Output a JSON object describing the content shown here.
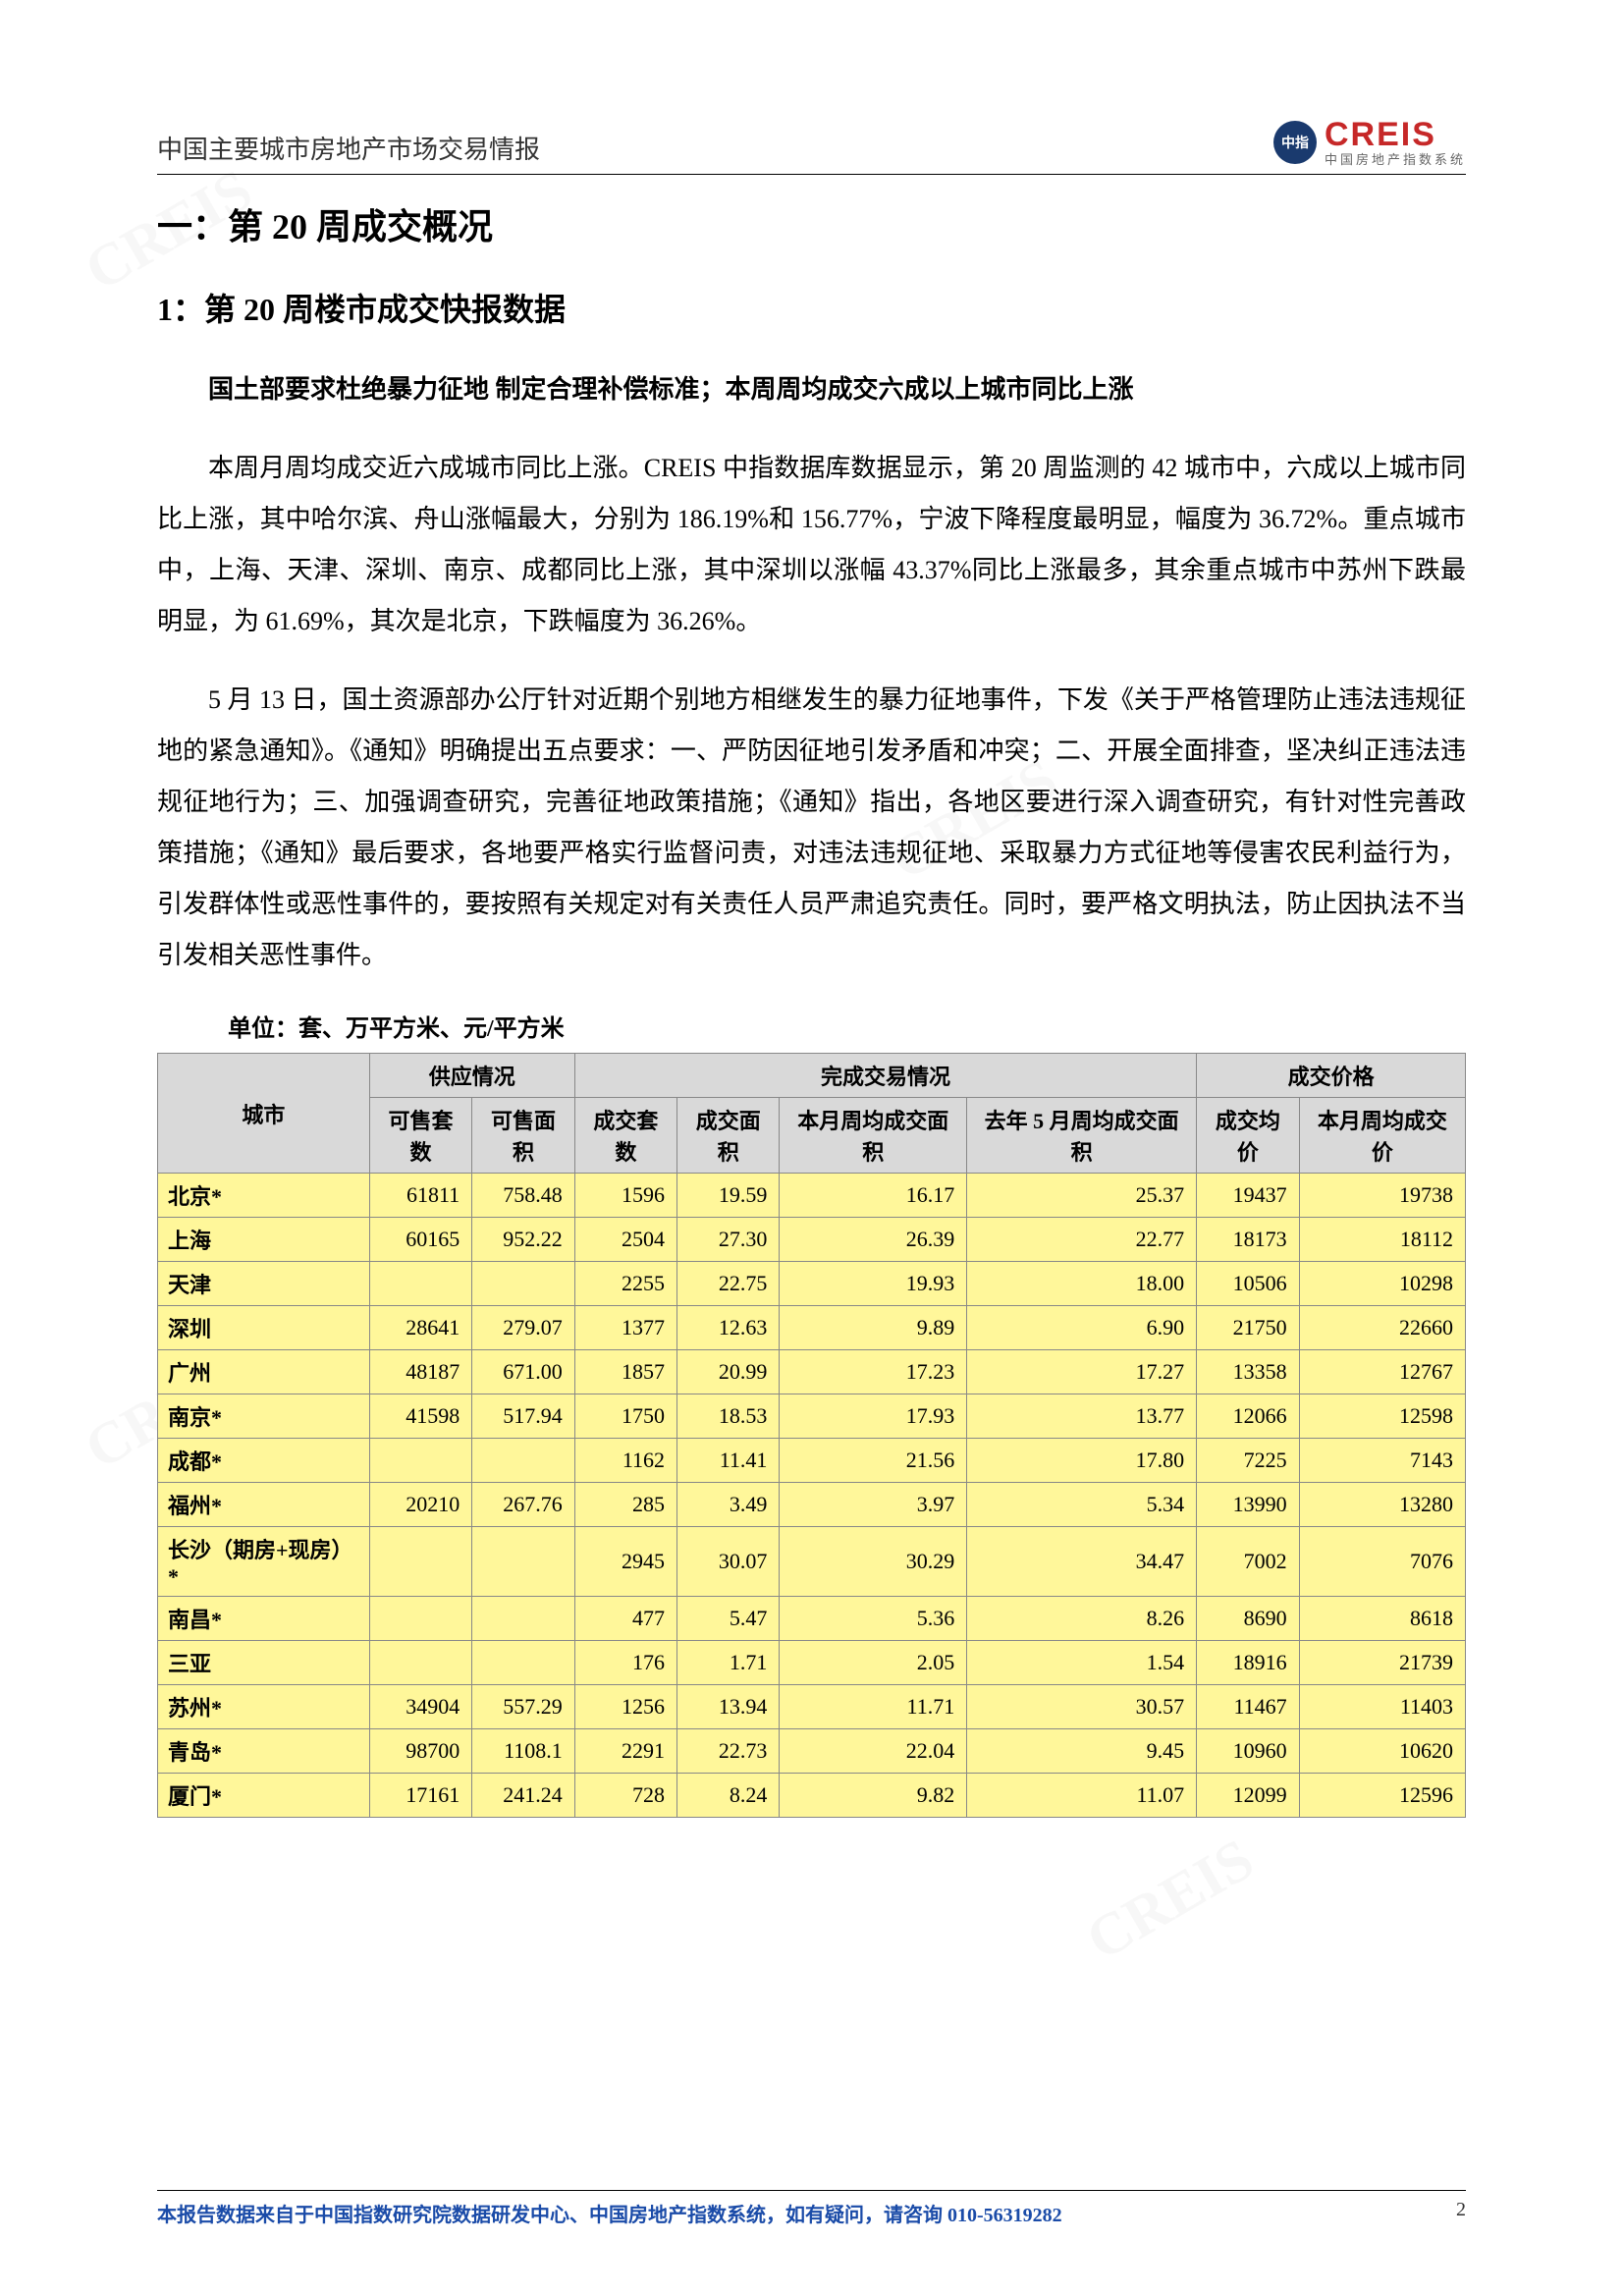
{
  "header": {
    "doc_title": "中国主要城市房地产市场交易情报",
    "logo_main": "CREIS",
    "logo_sub": "中国房地产指数系统"
  },
  "section_title": "一：第 20 周成交概况",
  "subsection_title": "1：第 20 周楼市成交快报数据",
  "lead_text": "国土部要求杜绝暴力征地 制定合理补偿标准；本周周均成交六成以上城市同比上涨",
  "para1": "本周月周均成交近六成城市同比上涨。CREIS 中指数据库数据显示，第 20 周监测的 42 城市中，六成以上城市同比上涨，其中哈尔滨、舟山涨幅最大，分别为 186.19%和 156.77%，宁波下降程度最明显，幅度为 36.72%。重点城市中，上海、天津、深圳、南京、成都同比上涨，其中深圳以涨幅 43.37%同比上涨最多，其余重点城市中苏州下跌最明显，为 61.69%，其次是北京，下跌幅度为 36.26%。",
  "para2": "5 月 13 日，国土资源部办公厅针对近期个别地方相继发生的暴力征地事件，下发《关于严格管理防止违法违规征地的紧急通知》。《通知》明确提出五点要求：一、严防因征地引发矛盾和冲突；二、开展全面排查，坚决纠正违法违规征地行为；三、加强调查研究，完善征地政策措施；《通知》指出，各地区要进行深入调查研究，有针对性完善政策措施；《通知》最后要求，各地要严格实行监督问责，对违法违规征地、采取暴力方式征地等侵害农民利益行为，引发群体性或恶性事件的，要按照有关规定对有关责任人员严肃追究责任。同时，要严格文明执法，防止因执法不当引发相关恶性事件。",
  "unit_label": "单位：套、万平方米、元/平方米",
  "table": {
    "group_headers": [
      "",
      "供应情况",
      "完成交易情况",
      "成交价格"
    ],
    "col_headers": [
      "城市",
      "可售套数",
      "可售面积",
      "成交套数",
      "成交面积",
      "本月周均成交面积",
      "去年 5 月周均成交面积",
      "成交均价",
      "本月周均成交价"
    ],
    "rows": [
      {
        "city": "北京*",
        "c1": "61811",
        "c2": "758.48",
        "c3": "1596",
        "c4": "19.59",
        "c5": "16.17",
        "c6": "25.37",
        "c7": "19437",
        "c8": "19738"
      },
      {
        "city": "上海",
        "c1": "60165",
        "c2": "952.22",
        "c3": "2504",
        "c4": "27.30",
        "c5": "26.39",
        "c6": "22.77",
        "c7": "18173",
        "c8": "18112"
      },
      {
        "city": "天津",
        "c1": "",
        "c2": "",
        "c3": "2255",
        "c4": "22.75",
        "c5": "19.93",
        "c6": "18.00",
        "c7": "10506",
        "c8": "10298"
      },
      {
        "city": "深圳",
        "c1": "28641",
        "c2": "279.07",
        "c3": "1377",
        "c4": "12.63",
        "c5": "9.89",
        "c6": "6.90",
        "c7": "21750",
        "c8": "22660"
      },
      {
        "city": "广州",
        "c1": "48187",
        "c2": "671.00",
        "c3": "1857",
        "c4": "20.99",
        "c5": "17.23",
        "c6": "17.27",
        "c7": "13358",
        "c8": "12767"
      },
      {
        "city": "南京*",
        "c1": "41598",
        "c2": "517.94",
        "c3": "1750",
        "c4": "18.53",
        "c5": "17.93",
        "c6": "13.77",
        "c7": "12066",
        "c8": "12598"
      },
      {
        "city": "成都*",
        "c1": "",
        "c2": "",
        "c3": "1162",
        "c4": "11.41",
        "c5": "21.56",
        "c6": "17.80",
        "c7": "7225",
        "c8": "7143"
      },
      {
        "city": "福州*",
        "c1": "20210",
        "c2": "267.76",
        "c3": "285",
        "c4": "3.49",
        "c5": "3.97",
        "c6": "5.34",
        "c7": "13990",
        "c8": "13280"
      },
      {
        "city": "长沙（期房+现房）*",
        "c1": "",
        "c2": "",
        "c3": "2945",
        "c4": "30.07",
        "c5": "30.29",
        "c6": "34.47",
        "c7": "7002",
        "c8": "7076"
      },
      {
        "city": "南昌*",
        "c1": "",
        "c2": "",
        "c3": "477",
        "c4": "5.47",
        "c5": "5.36",
        "c6": "8.26",
        "c7": "8690",
        "c8": "8618"
      },
      {
        "city": "三亚",
        "c1": "",
        "c2": "",
        "c3": "176",
        "c4": "1.71",
        "c5": "2.05",
        "c6": "1.54",
        "c7": "18916",
        "c8": "21739"
      },
      {
        "city": "苏州*",
        "c1": "34904",
        "c2": "557.29",
        "c3": "1256",
        "c4": "13.94",
        "c5": "11.71",
        "c6": "30.57",
        "c7": "11467",
        "c8": "11403"
      },
      {
        "city": "青岛*",
        "c1": "98700",
        "c2": "1108.1",
        "c3": "2291",
        "c4": "22.73",
        "c5": "22.04",
        "c6": "9.45",
        "c7": "10960",
        "c8": "10620"
      },
      {
        "city": "厦门*",
        "c1": "17161",
        "c2": "241.24",
        "c3": "728",
        "c4": "8.24",
        "c5": "9.82",
        "c6": "11.07",
        "c7": "12099",
        "c8": "12596"
      }
    ]
  },
  "footer": {
    "text": "本报告数据来自于中国指数研究院数据研发中心、中国房地产指数系统，如有疑问，请咨询 010-56319282",
    "page": "2"
  },
  "watermark_text": "CREIS"
}
